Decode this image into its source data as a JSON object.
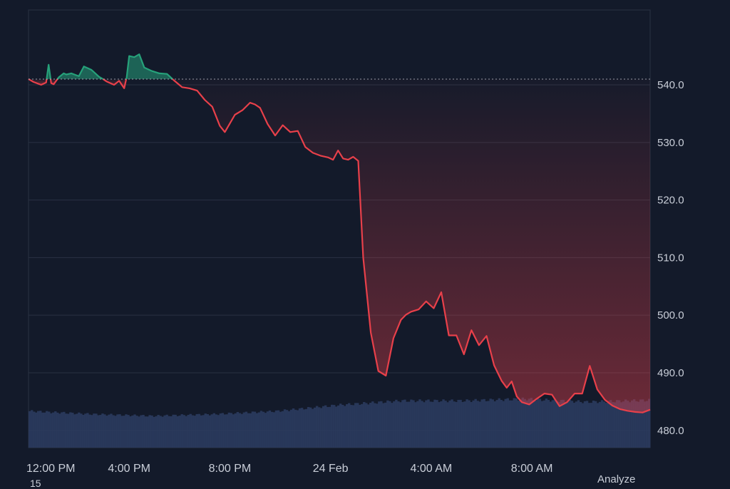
{
  "chart_data": {
    "type": "area",
    "baseline": 541.0,
    "ylim": [
      477,
      553
    ],
    "yticks": [
      "540.0",
      "530.0",
      "520.0",
      "510.0",
      "500.0",
      "490.0",
      "480.0"
    ],
    "ytick_values": [
      540,
      530,
      520,
      510,
      500,
      490,
      480
    ],
    "xticks": [
      "12:00 PM",
      "4:00 PM",
      "8:00 PM",
      "24 Feb",
      "4:00 AM",
      "8:00 AM"
    ],
    "xtick_hours": [
      0,
      4,
      8,
      12,
      16,
      20
    ],
    "x_range_hours": [
      0,
      24.7
    ],
    "colors": {
      "up": "#26a17a",
      "down": "#e8404a",
      "volume": "#2b3b5e",
      "grid": "#2a3243",
      "baseline": "#b8bcc6"
    },
    "series": [
      {
        "hours": [
          0,
          0.2,
          0.5,
          0.7,
          0.8,
          0.9,
          1.0,
          1.2,
          1.4,
          1.5,
          1.7,
          2.0,
          2.2,
          2.5,
          2.8,
          3.0,
          3.1,
          3.4,
          3.6,
          3.8,
          3.9,
          4.0,
          4.2,
          4.4,
          4.6,
          4.9,
          5.2,
          5.5,
          5.8,
          6.1,
          6.4,
          6.7,
          7.0,
          7.3,
          7.6,
          7.8,
          8.2,
          8.5,
          8.8,
          9.0,
          9.2,
          9.5,
          9.8,
          10.1,
          10.4,
          10.7,
          11.0,
          11.3,
          11.6,
          11.9,
          12.1,
          12.3,
          12.5,
          12.7,
          12.9,
          13.1,
          13.3,
          13.6,
          13.9,
          14.2,
          14.5,
          14.8,
          15.0,
          15.2,
          15.5,
          15.8,
          16.1,
          16.4,
          16.7,
          17.0,
          17.3,
          17.6,
          17.9,
          18.2,
          18.5,
          18.8,
          19.0,
          19.2,
          19.4,
          19.6,
          19.9,
          20.2,
          20.5,
          20.8,
          21.1,
          21.4,
          21.7,
          22.0,
          22.3,
          22.6,
          22.9,
          23.2,
          23.5,
          23.8,
          24.1,
          24.4,
          24.7
        ],
        "values": [
          541.0,
          540.5,
          540.0,
          540.4,
          543.5,
          540.3,
          540.1,
          541.3,
          542.0,
          541.8,
          542.0,
          541.5,
          543.2,
          542.6,
          541.4,
          540.9,
          540.6,
          540.0,
          540.7,
          539.4,
          541.3,
          545.0,
          544.8,
          545.3,
          543.0,
          542.4,
          542.0,
          541.9,
          540.7,
          539.6,
          539.4,
          539.0,
          537.4,
          536.2,
          532.9,
          531.8,
          534.8,
          535.6,
          536.9,
          536.6,
          536.0,
          533.2,
          531.2,
          533.0,
          531.8,
          532.0,
          529.2,
          528.2,
          527.7,
          527.4,
          527.0,
          528.6,
          527.2,
          527.0,
          527.5,
          526.8,
          510.0,
          497.0,
          490.3,
          489.5,
          496.0,
          499.2,
          500.1,
          500.6,
          501.0,
          502.4,
          501.2,
          504.0,
          496.5,
          496.5,
          493.2,
          497.4,
          494.8,
          496.4,
          491.3,
          488.6,
          487.4,
          488.5,
          485.9,
          484.9,
          484.5,
          485.5,
          486.4,
          486.2,
          484.2,
          484.9,
          486.4,
          486.4,
          491.2,
          487.1,
          485.3,
          484.3,
          483.7,
          483.4,
          483.2,
          483.1,
          483.6
        ]
      }
    ],
    "volume_level": [
      0.6,
      0.55,
      0.52,
      0.55,
      0.6,
      0.7,
      0.77,
      0.77,
      0.8,
      0.75,
      0.78
    ]
  },
  "footer": {
    "analyze_label": "Analyze",
    "corner_label": "15"
  }
}
